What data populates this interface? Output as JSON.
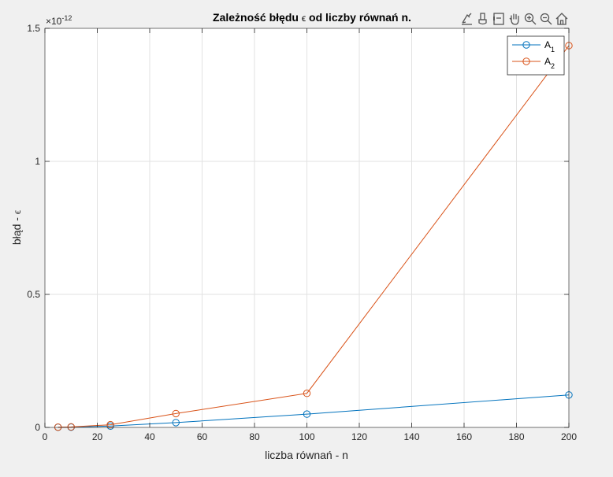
{
  "chart_data": {
    "type": "line",
    "title_prefix": "Zależność błędu ",
    "title_symbol": "ϵ",
    "title_suffix": " od liczby równań n.",
    "xlabel": "liczba równań - n",
    "ylabel_prefix": "błąd - ",
    "ylabel_symbol": "ϵ",
    "exponent_base": "×10",
    "exponent_power": "-12",
    "xlim": [
      0,
      200
    ],
    "ylim": [
      0,
      1.5
    ],
    "xticks": [
      0,
      20,
      40,
      60,
      80,
      100,
      120,
      140,
      160,
      180,
      200
    ],
    "yticks": [
      0,
      0.5,
      1,
      1.5
    ],
    "ytick_labels": [
      "0",
      "0.5",
      "1",
      "1.5"
    ],
    "grid": true,
    "legend_position": "top-right",
    "series": [
      {
        "name_base": "A",
        "name_sub": "1",
        "color": "#0072BD",
        "x": [
          5,
          10,
          25,
          50,
          100,
          200
        ],
        "y": [
          0.0005,
          0.001,
          0.005,
          0.018,
          0.05,
          0.122
        ]
      },
      {
        "name_base": "A",
        "name_sub": "2",
        "color": "#D95319",
        "x": [
          5,
          10,
          25,
          50,
          100,
          200
        ],
        "y": [
          0.001,
          0.002,
          0.01,
          0.052,
          0.128,
          1.435
        ]
      }
    ]
  },
  "toolbar": {
    "icons": [
      "export-icon",
      "brush-icon",
      "datatip-icon",
      "pan-icon",
      "zoom-in-icon",
      "zoom-out-icon",
      "home-icon"
    ]
  }
}
